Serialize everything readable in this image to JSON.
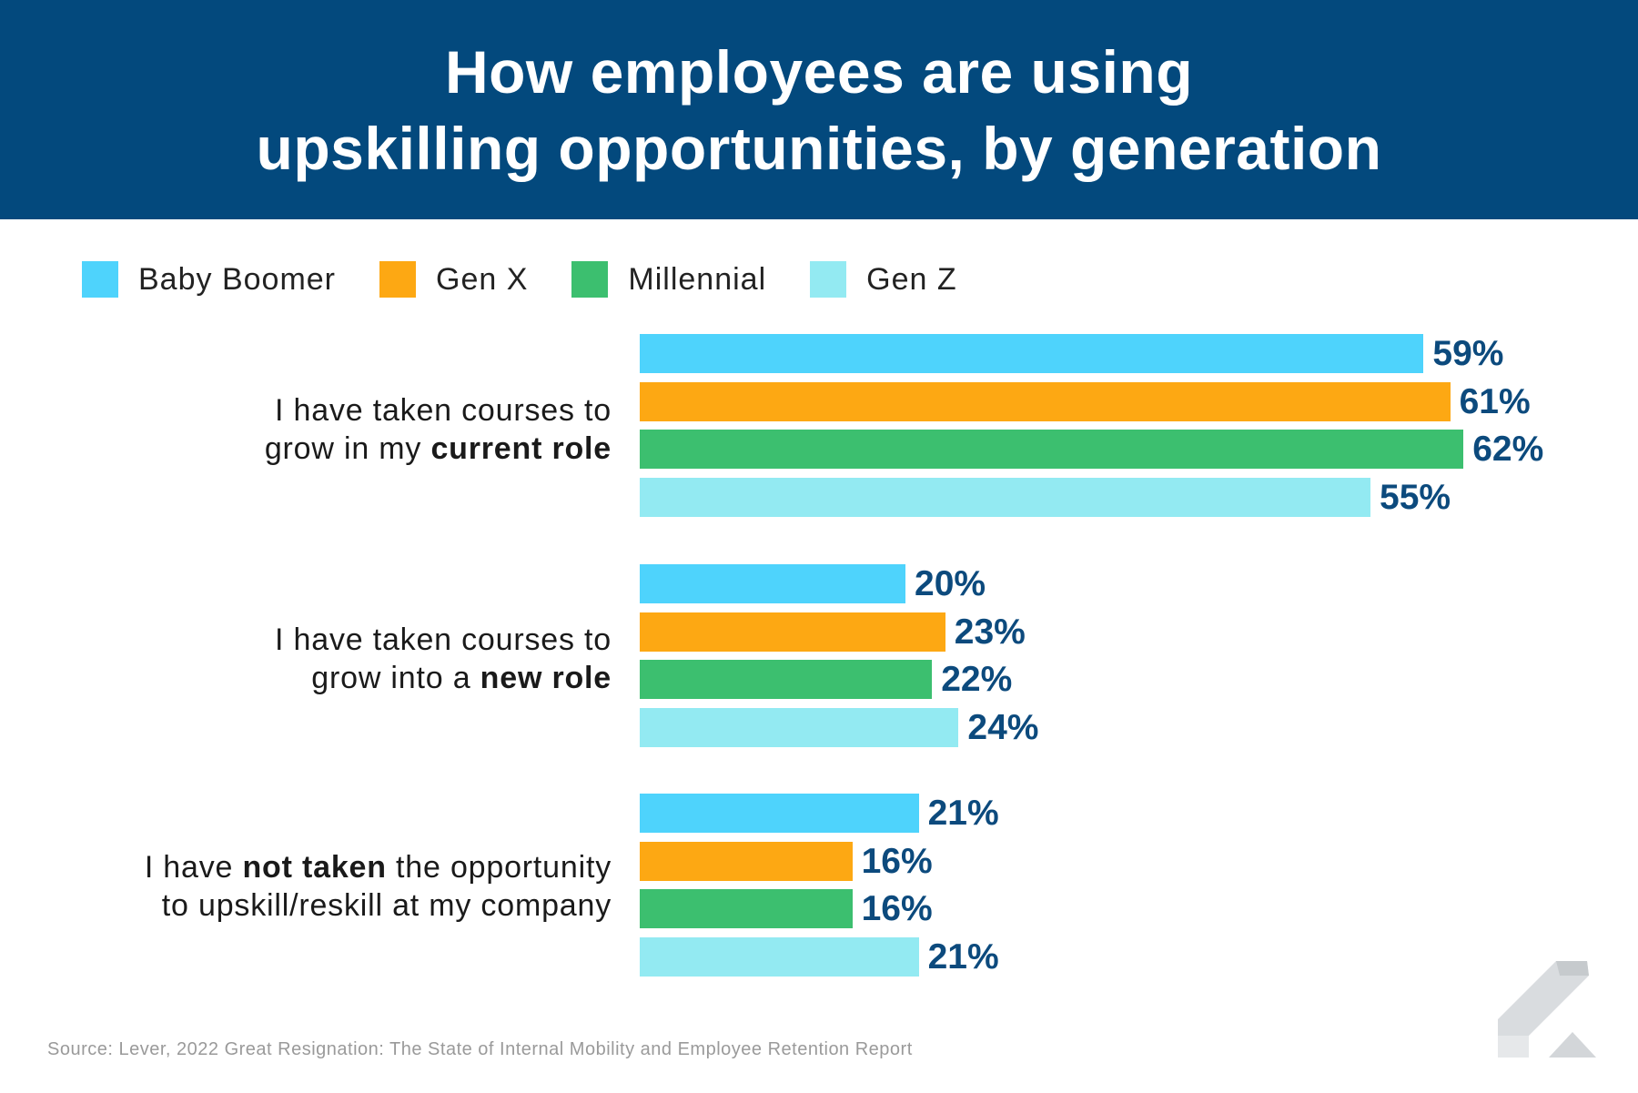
{
  "header": {
    "title_line1": "How employees are using",
    "title_line2": "upskilling opportunities, by generation"
  },
  "legend": [
    {
      "label": "Baby Boomer",
      "color": "#4ed3fc"
    },
    {
      "label": "Gen X",
      "color": "#fda813"
    },
    {
      "label": "Millennial",
      "color": "#3cbf6f"
    },
    {
      "label": "Gen Z",
      "color": "#93eaf2"
    }
  ],
  "groups": [
    {
      "line1": "I have taken courses to",
      "line2_plain": "grow in my ",
      "line2_bold": "current role"
    },
    {
      "line1": "I have taken courses to",
      "line2_plain": "grow into a ",
      "line2_bold": "new role"
    },
    {
      "line1_plain_a": "I have ",
      "line1_bold": "not taken",
      "line1_plain_b": " the opportunity",
      "line2": "to upskill/reskill at my company"
    }
  ],
  "chart_data": {
    "type": "bar",
    "orientation": "horizontal",
    "title": "How employees are using upskilling opportunities, by generation",
    "categories": [
      "I have taken courses to grow in my current role",
      "I have taken courses to grow into a new role",
      "I have not taken the opportunity to upskill/reskill at my company"
    ],
    "series": [
      {
        "name": "Baby Boomer",
        "color": "#4ed3fc",
        "values": [
          59,
          20,
          21
        ]
      },
      {
        "name": "Gen X",
        "color": "#fda813",
        "values": [
          61,
          23,
          16
        ]
      },
      {
        "name": "Millennial",
        "color": "#3cbf6f",
        "values": [
          62,
          22,
          16
        ]
      },
      {
        "name": "Gen Z",
        "color": "#93eaf2",
        "values": [
          55,
          24,
          21
        ]
      }
    ],
    "value_labels": [
      [
        "59%",
        "61%",
        "62%",
        "55%"
      ],
      [
        "20%",
        "23%",
        "22%",
        "24%"
      ],
      [
        "21%",
        "16%",
        "16%",
        "21%"
      ]
    ],
    "unit": "%",
    "legend_position": "top-left",
    "grid": false
  },
  "source": "Source: Lever, 2022 Great Resignation: The State of Internal Mobility and Employee Retention Report",
  "logo_icon": "lever-logo-icon"
}
